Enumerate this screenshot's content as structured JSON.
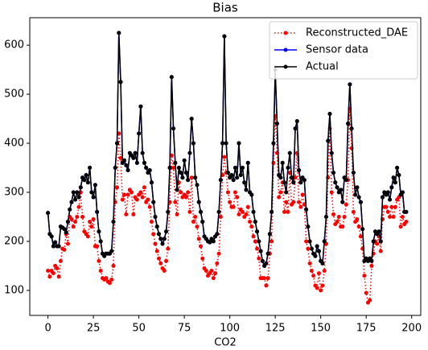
{
  "chart_data": {
    "type": "line",
    "title": "Bias",
    "x_label": "CO2",
    "x": [
      0,
      1,
      2,
      3,
      4,
      5,
      6,
      7,
      8,
      9,
      10,
      11,
      12,
      13,
      14,
      15,
      16,
      17,
      18,
      19,
      20,
      21,
      22,
      23,
      24,
      25,
      26,
      27,
      28,
      29,
      30,
      31,
      32,
      33,
      34,
      35,
      36,
      37,
      38,
      39,
      40,
      41,
      42,
      43,
      44,
      45,
      46,
      47,
      48,
      49,
      50,
      51,
      52,
      53,
      54,
      55,
      56,
      57,
      58,
      59,
      60,
      61,
      62,
      63,
      64,
      65,
      66,
      67,
      68,
      69,
      70,
      71,
      72,
      73,
      74,
      75,
      76,
      77,
      78,
      79,
      80,
      81,
      82,
      83,
      84,
      85,
      86,
      87,
      88,
      89,
      90,
      91,
      92,
      93,
      94,
      95,
      96,
      97,
      98,
      99,
      100,
      101,
      102,
      103,
      104,
      105,
      106,
      107,
      108,
      109,
      110,
      111,
      112,
      113,
      114,
      115,
      116,
      117,
      118,
      119,
      120,
      121,
      122,
      123,
      124,
      125,
      126,
      127,
      128,
      129,
      130,
      131,
      132,
      133,
      134,
      135,
      136,
      137,
      138,
      139,
      140,
      141,
      142,
      143,
      144,
      145,
      146,
      147,
      148,
      149,
      150,
      151,
      152,
      153,
      154,
      155,
      156,
      157,
      158,
      159,
      160,
      161,
      162,
      163,
      164,
      165,
      166,
      167,
      168,
      169,
      170,
      171,
      172,
      173,
      174,
      175,
      176,
      177,
      178,
      179,
      180,
      181,
      182,
      183,
      184,
      185,
      186,
      187,
      188,
      189,
      190,
      191,
      192,
      193,
      194,
      195,
      196,
      197
    ],
    "series": [
      {
        "name": "Reconstructed_DAE",
        "color": "#ff0000",
        "dash": "dotted",
        "values": [
          140,
          128,
          140,
          135,
          150,
          145,
          128,
          160,
          185,
          183,
          215,
          195,
          250,
          245,
          230,
          240,
          250,
          270,
          300,
          250,
          220,
          215,
          210,
          240,
          230,
          245,
          190,
          190,
          160,
          140,
          125,
          122,
          125,
          118,
          115,
          122,
          150,
          280,
          310,
          420,
          370,
          285,
          295,
          255,
          295,
          305,
          300,
          255,
          290,
          285,
          295,
          300,
          290,
          310,
          280,
          285,
          270,
          240,
          215,
          195,
          180,
          165,
          155,
          145,
          140,
          160,
          185,
          280,
          375,
          350,
          280,
          255,
          320,
          300,
          290,
          295,
          290,
          300,
          260,
          330,
          240,
          250,
          230,
          205,
          190,
          165,
          145,
          140,
          130,
          135,
          140,
          125,
          135,
          155,
          175,
          250,
          335,
          372,
          340,
          300,
          280,
          270,
          270,
          300,
          290,
          255,
          265,
          260,
          250,
          255,
          270,
          240,
          230,
          210,
          200,
          185,
          165,
          125,
          125,
          125,
          110,
          125,
          175,
          200,
          360,
          455,
          380,
          290,
          300,
          320,
          260,
          280,
          260,
          340,
          275,
          280,
          330,
          380,
          280,
          270,
          295,
          275,
          200,
          185,
          155,
          140,
          130,
          110,
          105,
          135,
          100,
          110,
          140,
          195,
          330,
          430,
          300,
          255,
          235,
          240,
          250,
          230,
          230,
          250,
          275,
          325,
          470,
          390,
          260,
          240,
          245,
          230,
          210,
          185,
          130,
          95,
          75,
          80,
          150,
          175,
          200,
          195,
          210,
          180,
          245,
          270,
          270,
          260,
          250,
          270,
          250,
          270,
          285,
          290,
          230,
          250,
          235,
          240
        ]
      },
      {
        "name": "Sensor data",
        "color": "#0000ff",
        "dash": "solid",
        "values": [
          258,
          215,
          210,
          190,
          198,
          190,
          190,
          230,
          228,
          225,
          218,
          240,
          265,
          280,
          300,
          285,
          300,
          290,
          310,
          330,
          325,
          335,
          320,
          350,
          300,
          290,
          315,
          260,
          220,
          200,
          175,
          170,
          175,
          175,
          175,
          180,
          240,
          350,
          400,
          625,
          525,
          360,
          365,
          355,
          345,
          380,
          375,
          370,
          380,
          360,
          420,
          475,
          380,
          360,
          350,
          340,
          345,
          320,
          280,
          250,
          230,
          215,
          205,
          195,
          205,
          220,
          260,
          350,
          535,
          430,
          360,
          305,
          350,
          340,
          330,
          365,
          340,
          325,
          380,
          450,
          400,
          330,
          315,
          280,
          260,
          240,
          210,
          205,
          200,
          198,
          205,
          200,
          210,
          215,
          260,
          325,
          400,
          618,
          400,
          340,
          330,
          335,
          325,
          350,
          330,
          400,
          335,
          350,
          320,
          305,
          360,
          300,
          295,
          260,
          240,
          220,
          200,
          180,
          160,
          150,
          155,
          175,
          215,
          260,
          400,
          550,
          440,
          335,
          330,
          360,
          320,
          300,
          350,
          380,
          330,
          320,
          430,
          445,
          345,
          320,
          330,
          325,
          265,
          230,
          200,
          185,
          175,
          170,
          190,
          180,
          160,
          155,
          200,
          250,
          405,
          460,
          380,
          340,
          320,
          310,
          300,
          305,
          280,
          330,
          325,
          440,
          520,
          430,
          340,
          295,
          310,
          290,
          280,
          225,
          160,
          165,
          160,
          165,
          160,
          200,
          220,
          215,
          220,
          200,
          290,
          300,
          295,
          300,
          285,
          310,
          330,
          320,
          350,
          335,
          295,
          300,
          260,
          260
        ]
      },
      {
        "name": "Actual",
        "color": "#000000",
        "dash": "solid",
        "values": [
          258,
          215,
          210,
          190,
          198,
          190,
          190,
          230,
          228,
          225,
          218,
          240,
          265,
          280,
          300,
          285,
          300,
          290,
          310,
          330,
          325,
          335,
          320,
          350,
          300,
          290,
          315,
          260,
          220,
          200,
          175,
          170,
          175,
          175,
          175,
          180,
          240,
          350,
          400,
          625,
          525,
          360,
          365,
          355,
          345,
          380,
          375,
          370,
          380,
          360,
          420,
          475,
          380,
          360,
          350,
          340,
          345,
          320,
          280,
          250,
          230,
          215,
          205,
          195,
          205,
          220,
          260,
          350,
          535,
          430,
          360,
          305,
          350,
          340,
          330,
          365,
          340,
          325,
          380,
          450,
          400,
          330,
          315,
          280,
          260,
          240,
          210,
          205,
          200,
          198,
          205,
          200,
          210,
          215,
          260,
          325,
          400,
          618,
          400,
          340,
          330,
          335,
          325,
          350,
          330,
          400,
          335,
          350,
          320,
          305,
          360,
          300,
          295,
          260,
          240,
          220,
          200,
          180,
          160,
          150,
          155,
          175,
          215,
          260,
          400,
          550,
          440,
          335,
          330,
          360,
          320,
          300,
          350,
          380,
          330,
          320,
          430,
          445,
          345,
          320,
          330,
          325,
          265,
          230,
          200,
          185,
          175,
          170,
          190,
          180,
          160,
          155,
          200,
          250,
          405,
          460,
          380,
          340,
          320,
          310,
          300,
          305,
          280,
          330,
          325,
          440,
          520,
          430,
          340,
          295,
          310,
          290,
          280,
          225,
          160,
          165,
          160,
          165,
          160,
          200,
          220,
          215,
          220,
          200,
          290,
          300,
          295,
          300,
          285,
          310,
          330,
          320,
          350,
          335,
          295,
          300,
          260,
          260
        ]
      }
    ],
    "xlim": [
      -10,
      205
    ],
    "xticks": [
      0,
      25,
      50,
      75,
      100,
      125,
      150,
      175,
      200
    ],
    "ylim": [
      49,
      656
    ],
    "yticks": [
      100,
      200,
      300,
      400,
      500,
      600
    ],
    "legend": "upper right"
  }
}
